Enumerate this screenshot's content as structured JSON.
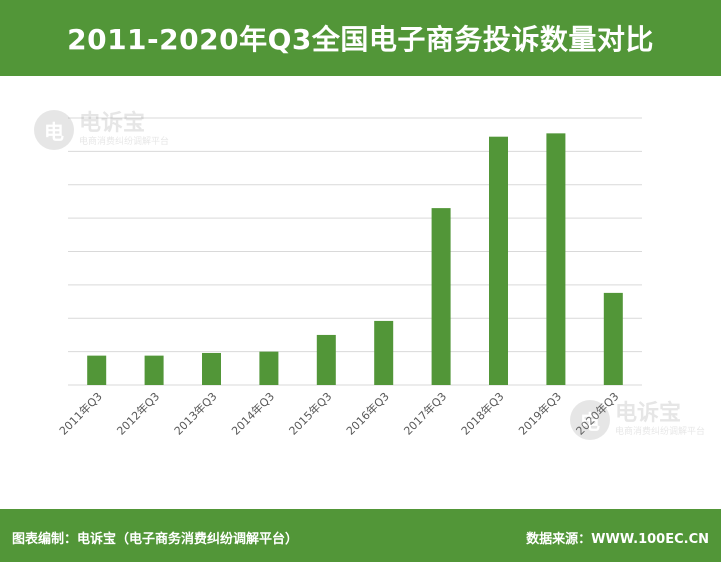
{
  "header": {
    "title": "2011-2020年Q3全国电子商务投诉数量对比"
  },
  "footer": {
    "left": "图表编制：电诉宝（电子商务消费纠纷调解平台）",
    "right": "数据来源：WWW.100EC.CN"
  },
  "watermark": {
    "icon_glyph": "电",
    "brand": "电诉宝",
    "sub": "电商消费纠纷调解平台"
  },
  "colors": {
    "accent": "#529638",
    "bar": "#529638",
    "grid": "#d9d9d9",
    "axis_text": "#595959"
  },
  "chart_data": {
    "type": "bar",
    "title": "2011-2020年Q3全国电子商务投诉数量对比",
    "categories": [
      "2011年Q3",
      "2012年Q3",
      "2013年Q3",
      "2014年Q3",
      "2015年Q3",
      "2016年Q3",
      "2017年Q3",
      "2018年Q3",
      "2019年Q3",
      "2020年Q3"
    ],
    "values": [
      4.4,
      4.4,
      4.8,
      5.0,
      7.5,
      9.6,
      26.5,
      37.2,
      37.7,
      13.8
    ],
    "ylim": [
      0,
      40
    ],
    "y_ticks": [
      0,
      5,
      10,
      15,
      20,
      25,
      30,
      35,
      40
    ],
    "y_tick_labels_shown": false,
    "grid": true,
    "legend": "none"
  }
}
